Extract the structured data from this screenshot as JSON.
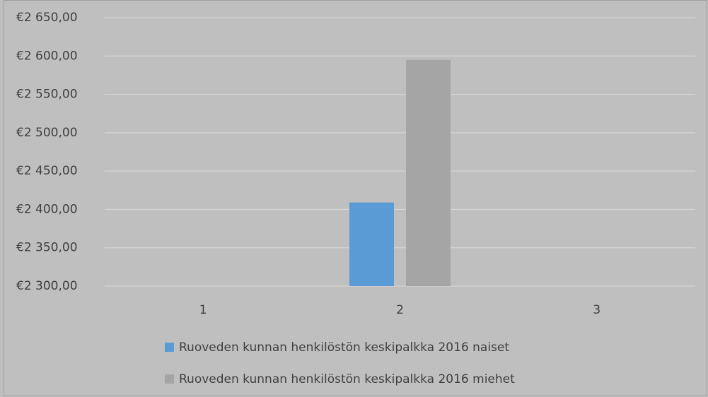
{
  "chart_data": {
    "type": "bar",
    "categories": [
      "1",
      "2",
      "3"
    ],
    "series": [
      {
        "name": "Ruoveden kunnan henkilöstön keskipalkka 2016 naiset",
        "color": "#5b9bd5",
        "values": [
          null,
          2409,
          null
        ]
      },
      {
        "name": "Ruoveden kunnan henkilöstön keskipalkka 2016 miehet",
        "color": "#a5a5a5",
        "values": [
          null,
          2595,
          null
        ]
      }
    ],
    "ylim": [
      2300,
      2650
    ],
    "yticks": [
      {
        "value": 2300,
        "label": "€2 300,00"
      },
      {
        "value": 2350,
        "label": "€2 350,00"
      },
      {
        "value": 2400,
        "label": "€2 400,00"
      },
      {
        "value": 2450,
        "label": "€2 450,00"
      },
      {
        "value": 2500,
        "label": "€2 500,00"
      },
      {
        "value": 2550,
        "label": "€2 550,00"
      },
      {
        "value": 2600,
        "label": "€2 600,00"
      },
      {
        "value": 2650,
        "label": "€2 650,00"
      }
    ],
    "grid": true
  }
}
